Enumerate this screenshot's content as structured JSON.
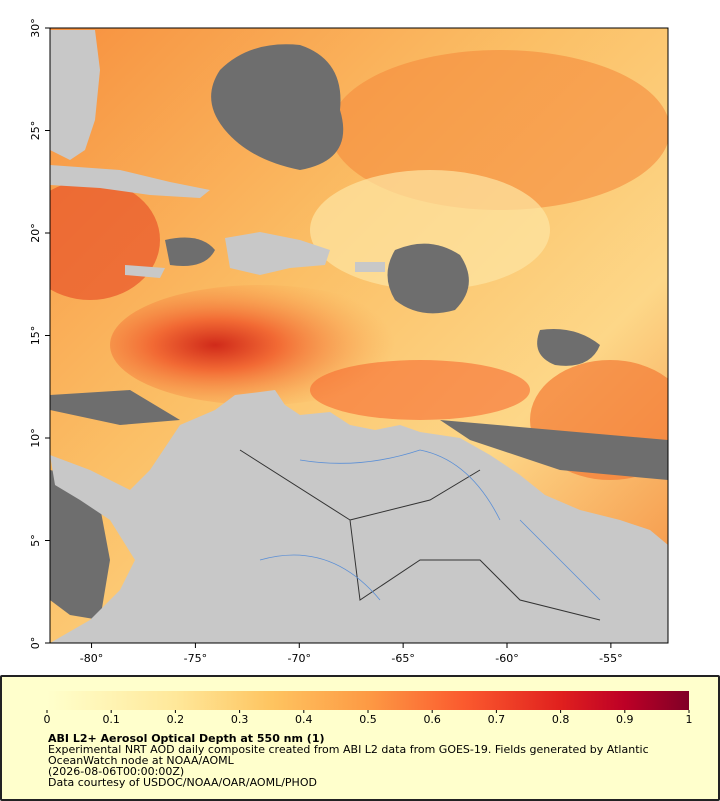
{
  "map": {
    "xlim": [
      -82,
      -52.25
    ],
    "ylim": [
      0,
      30
    ],
    "xticks": [
      {
        "value": -80,
        "label": "-80°"
      },
      {
        "value": -75,
        "label": "-75°"
      },
      {
        "value": -70,
        "label": "-70°"
      },
      {
        "value": -65,
        "label": "-65°"
      },
      {
        "value": -60,
        "label": "-60°"
      },
      {
        "value": -55,
        "label": "-55°"
      }
    ],
    "yticks": [
      {
        "value": 0,
        "label": "0°"
      },
      {
        "value": 5,
        "label": "5°"
      },
      {
        "value": 10,
        "label": "10°"
      },
      {
        "value": 15,
        "label": "15°"
      },
      {
        "value": 20,
        "label": "20°"
      },
      {
        "value": 25,
        "label": "25°"
      },
      {
        "value": 30,
        "label": "30°"
      }
    ]
  },
  "colorbar": {
    "lim": [
      0,
      1
    ],
    "ticks": [
      0,
      0.1,
      0.2,
      0.3,
      0.4,
      0.5,
      0.6,
      0.7,
      0.8,
      0.9,
      1
    ]
  },
  "caption": {
    "title": "ABI L2+ Aerosol Optical Depth at 550 nm (1)",
    "description": "Experimental NRT AOD daily composite created from ABI L2 data from GOES-19. Fields generated by Atlantic OceanWatch node at NOAA/AOML",
    "time": "(2026-08-06T00:00:00Z)",
    "credit": "Data courtesy of USDOC/NOAA/OAR/AOML/PHOD"
  }
}
